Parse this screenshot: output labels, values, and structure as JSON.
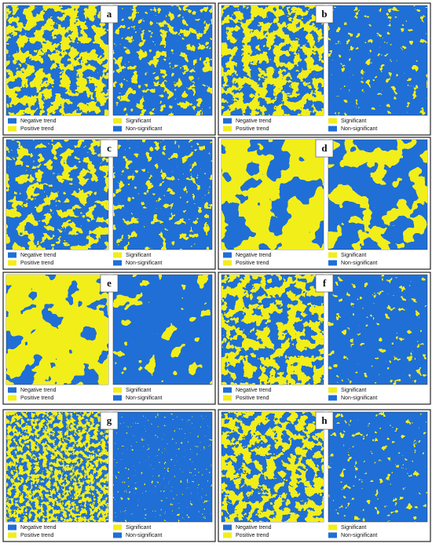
{
  "panels": [
    {
      "label": "a",
      "legend": {
        "trend": [
          "Negative trend",
          "Positive trend"
        ],
        "significance": [
          "Significant",
          "Non-significant"
        ]
      }
    },
    {
      "label": "b",
      "legend": {
        "trend": [
          "Negative trend",
          "Positive trend"
        ],
        "significance": [
          "Significant",
          "Non-significant"
        ]
      }
    },
    {
      "label": "c",
      "legend": {
        "trend": [
          "Negative trend",
          "Positive trend"
        ],
        "significance": [
          "Significant",
          "Non-significant"
        ]
      }
    },
    {
      "label": "d",
      "legend": {
        "trend": [
          "Negative trend",
          "Positive trend"
        ],
        "significance": [
          "Significant",
          "Non-significant"
        ]
      }
    },
    {
      "label": "e",
      "legend": {
        "trend": [
          "Negative trend",
          "Positive trend"
        ],
        "significance": [
          "Significant",
          "Non-significant"
        ]
      }
    },
    {
      "label": "f",
      "legend": {
        "trend": [
          "Negative trend",
          "Positive trend"
        ],
        "significance": [
          "Significant",
          "Non-significant"
        ]
      }
    },
    {
      "label": "g",
      "legend": {
        "trend": [
          "Negative trend",
          "Positive trend"
        ],
        "significance": [
          "Significant",
          "Non-significant"
        ]
      }
    },
    {
      "label": "h",
      "legend": {
        "trend": [
          "Negative trend",
          "Positive trend"
        ],
        "significance": [
          "Significant",
          "Non-significant"
        ]
      }
    }
  ]
}
